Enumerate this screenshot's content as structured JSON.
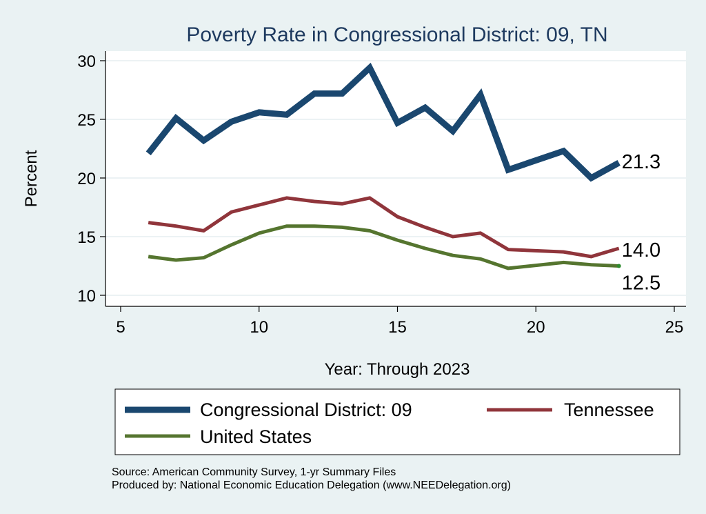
{
  "chart_data": {
    "type": "line",
    "title": "Poverty Rate in Congressional District:  09, TN",
    "xlabel": "Year: Through 2023",
    "ylabel": "Percent",
    "xlim": [
      5,
      25
    ],
    "ylim": [
      10,
      30
    ],
    "xticks": [
      "5",
      "10",
      "15",
      "20",
      "25"
    ],
    "yticks": [
      "10",
      "15",
      "20",
      "25",
      "30"
    ],
    "grid": "horizontal",
    "legend_position": "bottom",
    "series": [
      {
        "name": "Congressional District:  09",
        "color": "#1a476f",
        "x": [
          6,
          7,
          8,
          9,
          10,
          11,
          12,
          13,
          14,
          15,
          16,
          17,
          18,
          19,
          21,
          22,
          23
        ],
        "y": [
          22.1,
          25.1,
          23.2,
          24.8,
          25.6,
          25.4,
          27.2,
          27.2,
          29.4,
          24.7,
          26.0,
          24.0,
          27.1,
          20.7,
          22.3,
          20.0,
          21.3
        ],
        "end_label": "21.3"
      },
      {
        "name": "Tennessee",
        "color": "#90353b",
        "x": [
          6,
          7,
          8,
          9,
          10,
          11,
          12,
          13,
          14,
          15,
          16,
          17,
          18,
          19,
          21,
          22,
          23
        ],
        "y": [
          16.2,
          15.9,
          15.5,
          17.1,
          17.7,
          18.3,
          18.0,
          17.8,
          18.3,
          16.7,
          15.8,
          15.0,
          15.3,
          13.9,
          13.7,
          13.3,
          14.0
        ],
        "end_label": "14.0"
      },
      {
        "name": "United States",
        "color": "#55752f",
        "x": [
          6,
          7,
          8,
          9,
          10,
          11,
          12,
          13,
          14,
          15,
          16,
          17,
          18,
          19,
          21,
          22,
          23
        ],
        "y": [
          13.3,
          13.0,
          13.2,
          14.3,
          15.3,
          15.9,
          15.9,
          15.8,
          15.5,
          14.7,
          14.0,
          13.4,
          13.1,
          12.3,
          12.8,
          12.6,
          12.5
        ],
        "end_label": "12.5"
      }
    ],
    "notes": [
      "Source: American Community Survey, 1-yr Summary Files",
      "Produced by: National Economic Education Delegation (www.NEEDelegation.org)"
    ]
  }
}
